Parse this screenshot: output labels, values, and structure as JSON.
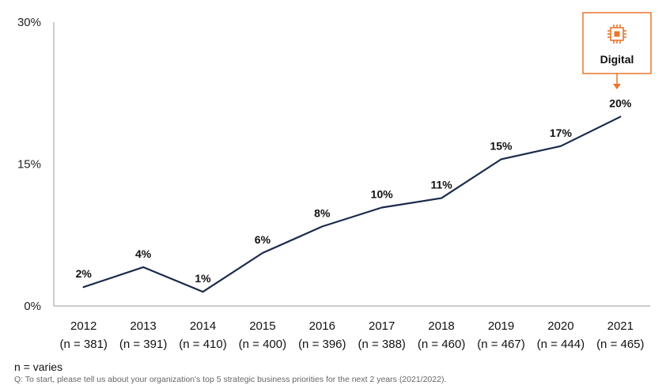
{
  "chart_data": {
    "type": "line",
    "title": "",
    "xlabel": "",
    "ylabel": "",
    "ylim": [
      0,
      30
    ],
    "yticks": [
      "0%",
      "15%",
      "30%"
    ],
    "ytick_values": [
      0,
      15,
      30
    ],
    "grid": false,
    "categories": [
      "2012",
      "2013",
      "2014",
      "2015",
      "2016",
      "2017",
      "2018",
      "2019",
      "2020",
      "2021"
    ],
    "sample_sizes": [
      "(n = 381)",
      "(n = 391)",
      "(n = 410)",
      "(n = 400)",
      "(n = 396)",
      "(n = 388)",
      "(n = 460)",
      "(n = 467)",
      "(n = 444)",
      "(n = 465)"
    ],
    "series": [
      {
        "values": [
          2,
          4,
          1,
          6,
          8,
          10,
          11,
          15,
          17,
          20
        ],
        "plot_values": [
          2.0,
          4.1,
          1.5,
          5.6,
          8.4,
          10.4,
          11.4,
          15.5,
          16.9,
          20.0
        ],
        "labels": [
          "2%",
          "4%",
          "1%",
          "6%",
          "8%",
          "10%",
          "11%",
          "15%",
          "17%",
          "20%"
        ],
        "color": "#1b2a4a"
      }
    ],
    "callout": {
      "label": "Digital",
      "icon": "chip-icon",
      "target_index": 9,
      "color": "#e8762d"
    }
  },
  "footer": {
    "note": "n = varies",
    "question": "Q: To start, please tell us about your organization's top 5 strategic business priorities for the next 2 years (2021/2022)."
  }
}
